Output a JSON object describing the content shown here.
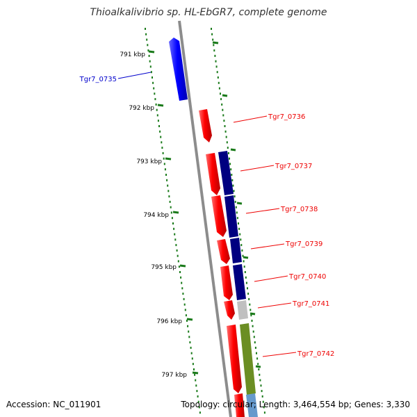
{
  "title": "Thioalkalivibrio sp. HL-EbGR7, complete genome",
  "accession": "Accession: NC_011901",
  "summary": "Topology: circular; Length: 3,464,554 bp; Genes: 3,330",
  "ticks": [
    {
      "label": "791 kbp",
      "kbp": 791
    },
    {
      "label": "792 kbp",
      "kbp": 792
    },
    {
      "label": "793 kbp",
      "kbp": 793
    },
    {
      "label": "794 kbp",
      "kbp": 794
    },
    {
      "label": "795 kbp",
      "kbp": 795
    },
    {
      "label": "796 kbp",
      "kbp": 796
    },
    {
      "label": "797 kbp",
      "kbp": 797
    }
  ],
  "features": [
    {
      "label": "Tgr7_0735",
      "color": "#0000ee"
    },
    {
      "label": "Tgr7_0736",
      "color": "#ee0000"
    },
    {
      "label": "Tgr7_0737",
      "color": "#ee0000"
    },
    {
      "label": "Tgr7_0738",
      "color": "#ee0000"
    },
    {
      "label": "Tgr7_0739",
      "color": "#ee0000"
    },
    {
      "label": "Tgr7_0740",
      "color": "#ee0000"
    },
    {
      "label": "Tgr7_0741",
      "color": "#ee0000"
    },
    {
      "label": "Tgr7_0742",
      "color": "#ee0000"
    }
  ],
  "colors": {
    "backbone": "#8c8c8c",
    "tick": "#1a7a1a",
    "cds_forward": "#ff0000",
    "cds_reverse": "#0000ff",
    "cog_navy": "#000080",
    "cog_grey": "#c0c0c0",
    "cog_olive": "#6b8e23",
    "cog_lightblue": "#6699cc"
  }
}
